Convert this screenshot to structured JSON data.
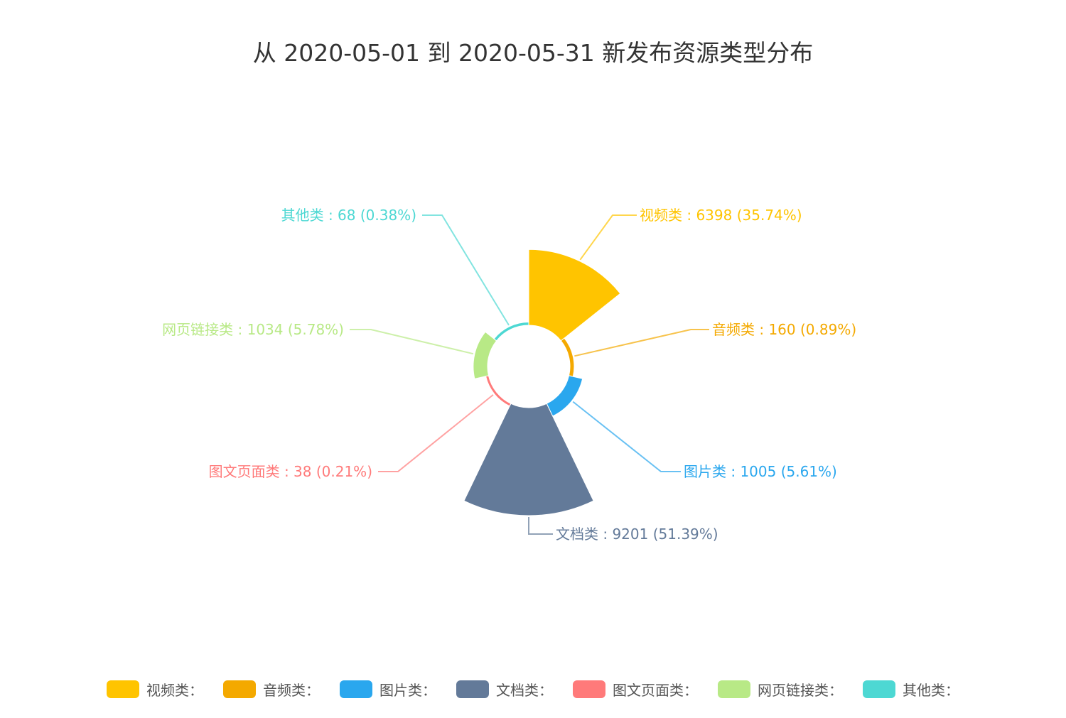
{
  "title": "从 2020-05-01 到 2020-05-31 新发布资源类型分布",
  "chart_data": {
    "type": "pie",
    "rose": true,
    "title": "从 2020-05-01 到 2020-05-31 新发布资源类型分布",
    "legend_position": "bottom",
    "series": [
      {
        "name": "视频类",
        "value": 6398,
        "percent": "35.74%",
        "label": "视频类 : 6398 (35.74%)",
        "color": "#ffc400"
      },
      {
        "name": "音频类",
        "value": 160,
        "percent": "0.89%",
        "label": "音频类 : 160 (0.89%)",
        "color": "#f4a900"
      },
      {
        "name": "图片类",
        "value": 1005,
        "percent": "5.61%",
        "label": "图片类 : 1005 (5.61%)",
        "color": "#2aa7ee"
      },
      {
        "name": "文档类",
        "value": 9201,
        "percent": "51.39%",
        "label": "文档类 : 9201 (51.39%)",
        "color": "#637a99"
      },
      {
        "name": "图文页面类",
        "value": 38,
        "percent": "0.21%",
        "label": "图文页面类 : 38 (0.21%)",
        "color": "#ff7a7a"
      },
      {
        "name": "网页链接类",
        "value": 1034,
        "percent": "5.78%",
        "label": "网页链接类 : 1034 (5.78%)",
        "color": "#b8e986"
      },
      {
        "name": "其他类",
        "value": 68,
        "percent": "0.38%",
        "label": "其他类 : 68 (0.38%)",
        "color": "#4dd8d3"
      }
    ],
    "legend": [
      {
        "label": "视频类：",
        "color": "#ffc400"
      },
      {
        "label": "音频类：",
        "color": "#f4a900"
      },
      {
        "label": "图片类：",
        "color": "#2aa7ee"
      },
      {
        "label": "文档类：",
        "color": "#637a99"
      },
      {
        "label": "图文页面类：",
        "color": "#ff7a7a"
      },
      {
        "label": "网页链接类：",
        "color": "#b8e986"
      },
      {
        "label": "其他类：",
        "color": "#4dd8d3"
      }
    ]
  }
}
